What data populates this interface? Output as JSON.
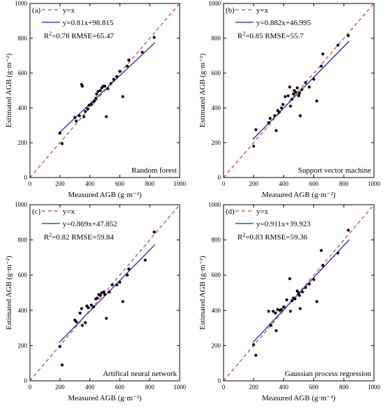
{
  "chart_data": [
    {
      "type": "scatter",
      "panel_label": "(a)",
      "model_name": "Random forest",
      "xlabel": "Measured AGB (g·m⁻²)",
      "ylabel": "Estimated AGB (g·m⁻²)",
      "xlim": [
        0,
        1000
      ],
      "ylim": [
        0,
        1000
      ],
      "xticks": [
        0,
        200,
        400,
        600,
        800,
        1000
      ],
      "yticks": [
        0,
        200,
        400,
        600,
        800,
        1000
      ],
      "legend": {
        "identity_label": "y=x",
        "fit_label": "y=0.81x+98.815"
      },
      "stats": {
        "r2_prefix": "R",
        "r2_sup": "2",
        "r2_text": "=0.78 RMSE=65.47"
      },
      "fit": {
        "slope": 0.81,
        "intercept": 98.815,
        "x_range": [
          195,
          835
        ]
      },
      "points": [
        [
          200,
          255
        ],
        [
          215,
          195
        ],
        [
          300,
          345
        ],
        [
          310,
          325
        ],
        [
          330,
          355
        ],
        [
          345,
          535
        ],
        [
          350,
          525
        ],
        [
          360,
          350
        ],
        [
          370,
          380
        ],
        [
          385,
          395
        ],
        [
          395,
          415
        ],
        [
          410,
          420
        ],
        [
          425,
          435
        ],
        [
          430,
          440
        ],
        [
          440,
          455
        ],
        [
          445,
          480
        ],
        [
          455,
          495
        ],
        [
          470,
          500
        ],
        [
          480,
          515
        ],
        [
          490,
          525
        ],
        [
          500,
          525
        ],
        [
          510,
          350
        ],
        [
          520,
          510
        ],
        [
          540,
          540
        ],
        [
          560,
          565
        ],
        [
          580,
          580
        ],
        [
          600,
          610
        ],
        [
          620,
          465
        ],
        [
          650,
          640
        ],
        [
          660,
          675
        ],
        [
          750,
          720
        ],
        [
          830,
          805
        ]
      ],
      "colors": {
        "identity": "#e8312f",
        "fit": "#1f1fd8",
        "points": "#000000"
      }
    },
    {
      "type": "scatter",
      "panel_label": "(b)",
      "model_name": "Support vector machine",
      "xlabel": "Measured AGB (g·m⁻²)",
      "ylabel": "Estimated AGB (g·m⁻²)",
      "xlim": [
        0,
        1000
      ],
      "ylim": [
        0,
        1000
      ],
      "xticks": [
        0,
        200,
        400,
        600,
        800,
        1000
      ],
      "yticks": [
        0,
        200,
        400,
        600,
        800,
        1000
      ],
      "legend": {
        "identity_label": "y=x",
        "fit_label": "y=0.882x+46.995"
      },
      "stats": {
        "r2_prefix": "R",
        "r2_sup": "2",
        "r2_text": "=0.85 RMSE=55.7"
      },
      "fit": {
        "slope": 0.882,
        "intercept": 46.995,
        "x_range": [
          195,
          835
        ]
      },
      "points": [
        [
          200,
          180
        ],
        [
          215,
          275
        ],
        [
          300,
          315
        ],
        [
          310,
          340
        ],
        [
          340,
          355
        ],
        [
          350,
          270
        ],
        [
          360,
          385
        ],
        [
          370,
          375
        ],
        [
          385,
          400
        ],
        [
          395,
          420
        ],
        [
          410,
          465
        ],
        [
          430,
          470
        ],
        [
          440,
          520
        ],
        [
          445,
          410
        ],
        [
          455,
          450
        ],
        [
          465,
          480
        ],
        [
          470,
          500
        ],
        [
          480,
          490
        ],
        [
          490,
          515
        ],
        [
          500,
          470
        ],
        [
          505,
          485
        ],
        [
          510,
          355
        ],
        [
          520,
          505
        ],
        [
          545,
          545
        ],
        [
          570,
          520
        ],
        [
          600,
          565
        ],
        [
          620,
          440
        ],
        [
          650,
          640
        ],
        [
          660,
          710
        ],
        [
          760,
          760
        ],
        [
          830,
          815
        ]
      ],
      "colors": {
        "identity": "#e8312f",
        "fit": "#1f1fd8",
        "points": "#000000"
      }
    },
    {
      "type": "scatter",
      "panel_label": "(c)",
      "model_name": "Artifical neural network",
      "xlabel": "Measured AGB (g·m⁻²)",
      "ylabel": "Estimated AGB (g·m⁻²)",
      "xlim": [
        0,
        1000
      ],
      "ylim": [
        0,
        1000
      ],
      "xticks": [
        0,
        200,
        400,
        600,
        800,
        1000
      ],
      "yticks": [
        0,
        200,
        400,
        600,
        800,
        1000
      ],
      "legend": {
        "identity_label": "y=x",
        "fit_label": "y=0.869x+47.852"
      },
      "stats": {
        "r2_prefix": "R",
        "r2_sup": "2",
        "r2_text": "=0.82 RMSE=59.84"
      },
      "fit": {
        "slope": 0.869,
        "intercept": 47.852,
        "x_range": [
          195,
          835
        ]
      },
      "points": [
        [
          200,
          195
        ],
        [
          215,
          90
        ],
        [
          300,
          345
        ],
        [
          310,
          335
        ],
        [
          335,
          385
        ],
        [
          345,
          410
        ],
        [
          350,
          315
        ],
        [
          370,
          330
        ],
        [
          380,
          425
        ],
        [
          390,
          415
        ],
        [
          410,
          430
        ],
        [
          425,
          420
        ],
        [
          440,
          465
        ],
        [
          450,
          470
        ],
        [
          460,
          490
        ],
        [
          470,
          485
        ],
        [
          480,
          500
        ],
        [
          495,
          505
        ],
        [
          500,
          490
        ],
        [
          510,
          355
        ],
        [
          530,
          505
        ],
        [
          550,
          545
        ],
        [
          580,
          545
        ],
        [
          600,
          560
        ],
        [
          620,
          450
        ],
        [
          650,
          600
        ],
        [
          660,
          635
        ],
        [
          770,
          685
        ],
        [
          830,
          845
        ]
      ],
      "colors": {
        "identity": "#e8312f",
        "fit": "#1f1fd8",
        "points": "#000000"
      }
    },
    {
      "type": "scatter",
      "panel_label": "(d)",
      "model_name": "Gaussian process regression",
      "xlabel": "Measured AGB (g·m⁻²)",
      "ylabel": "Estimated AGB (g·m⁻²)",
      "xlim": [
        0,
        1000
      ],
      "ylim": [
        0,
        1000
      ],
      "xticks": [
        0,
        200,
        400,
        600,
        800,
        1000
      ],
      "yticks": [
        0,
        200,
        400,
        600,
        800,
        1000
      ],
      "legend": {
        "identity_label": "y=x",
        "fit_label": "y=0.911x+39.923"
      },
      "stats": {
        "r2_prefix": "R",
        "r2_sup": "2",
        "r2_text": "=0.83 RMSE=59.36"
      },
      "fit": {
        "slope": 0.911,
        "intercept": 39.923,
        "x_range": [
          195,
          835
        ]
      },
      "points": [
        [
          200,
          205
        ],
        [
          215,
          145
        ],
        [
          300,
          395
        ],
        [
          315,
          315
        ],
        [
          330,
          395
        ],
        [
          345,
          385
        ],
        [
          350,
          285
        ],
        [
          360,
          405
        ],
        [
          375,
          400
        ],
        [
          385,
          405
        ],
        [
          400,
          420
        ],
        [
          420,
          460
        ],
        [
          440,
          580
        ],
        [
          445,
          395
        ],
        [
          455,
          455
        ],
        [
          465,
          470
        ],
        [
          475,
          465
        ],
        [
          490,
          510
        ],
        [
          500,
          500
        ],
        [
          505,
          485
        ],
        [
          510,
          410
        ],
        [
          525,
          505
        ],
        [
          545,
          530
        ],
        [
          570,
          550
        ],
        [
          600,
          575
        ],
        [
          620,
          450
        ],
        [
          650,
          740
        ],
        [
          660,
          655
        ],
        [
          760,
          725
        ],
        [
          830,
          855
        ]
      ],
      "colors": {
        "identity": "#e8312f",
        "fit": "#1f1fd8",
        "points": "#000000"
      }
    }
  ]
}
